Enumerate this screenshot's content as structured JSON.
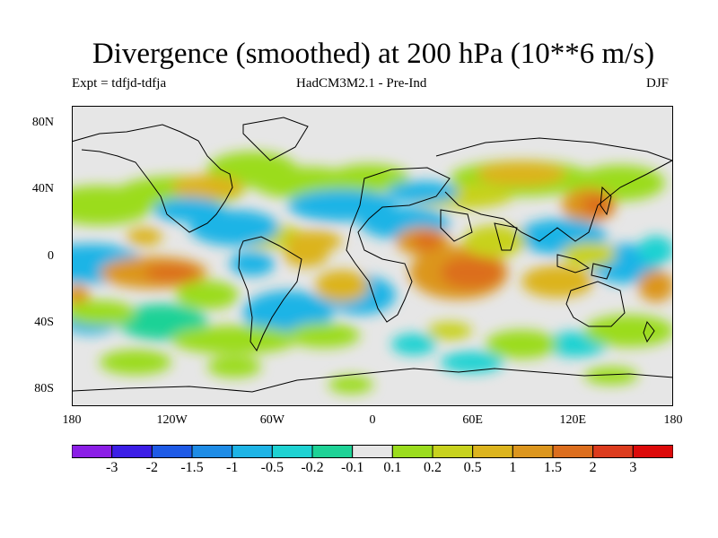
{
  "title": "Divergence (smoothed) at 200 hPa (10**6 m/s)",
  "experiment": "Expt = tdfjd-tdfja",
  "model": "HadCM3M2.1 - Pre-Ind",
  "season": "DJF",
  "map": {
    "projection": "equirectangular",
    "lon_range": [
      -180,
      180
    ],
    "lat_range": [
      -90,
      90
    ],
    "y_ticks": [
      "80N",
      "40N",
      "0",
      "40S",
      "80S"
    ],
    "y_tick_lats": [
      80,
      40,
      0,
      -40,
      -80
    ],
    "x_ticks": [
      "180",
      "120W",
      "60W",
      "0",
      "60E",
      "120E",
      "180"
    ],
    "x_tick_lons": [
      -180,
      -120,
      -60,
      0,
      60,
      120,
      180
    ],
    "background_color": "#e6e6e6",
    "coastline_color": "#000000"
  },
  "colorbar": {
    "colors": [
      "#8b1ee6",
      "#3c1ee6",
      "#1e5ae6",
      "#1e8ce6",
      "#1eb4e6",
      "#1ed2d2",
      "#1ed296",
      "#e6e6e6",
      "#9bdc1e",
      "#c8d21e",
      "#dcb41e",
      "#dc961e",
      "#dc6e1e",
      "#dc3c1e",
      "#dc0a0a"
    ],
    "labels": [
      "-3",
      "-2",
      "-1.5",
      "-1",
      "-0.5",
      "-0.2",
      "-0.1",
      "0.1",
      "0.2",
      "0.5",
      "1",
      "1.5",
      "2",
      "3"
    ]
  }
}
